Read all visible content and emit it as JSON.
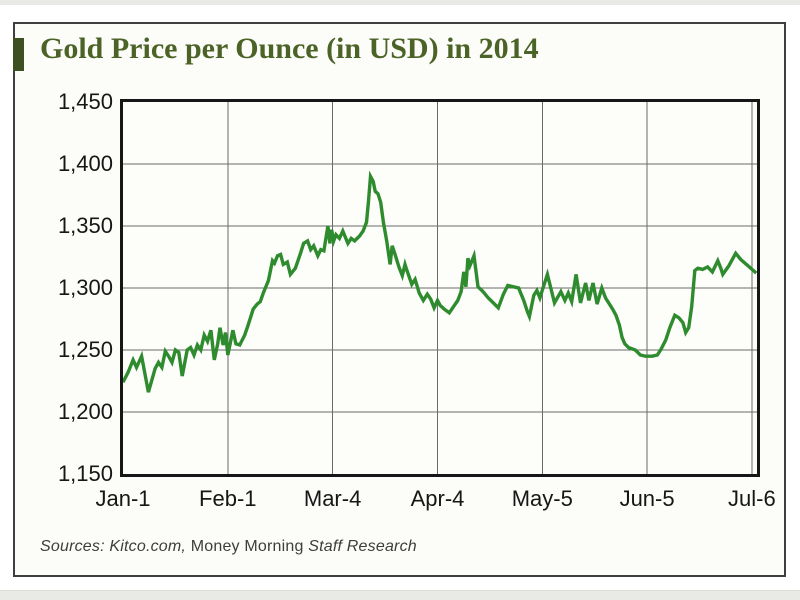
{
  "title": "Gold Price per Ounce (in USD) in 2014",
  "source_note": {
    "prefix": "Sources: Kitco.com,",
    "middle": " Money Morning ",
    "suffix": "Staff Research"
  },
  "colors": {
    "line": "#2e8b2e",
    "title_text": "#4c6327",
    "accent_bar": "#3c5022",
    "grid": "#6a6a6a",
    "plot_border": "#161616",
    "card_border": "#3f3f3f",
    "tick_text": "#161616"
  },
  "chart_data": {
    "type": "line",
    "title": "Gold Price per Ounce (in USD) in 2014",
    "xlabel": "",
    "ylabel": "",
    "grid": true,
    "legend": "none",
    "ylim": [
      1150,
      1450
    ],
    "xlim_days": [
      0,
      187.5
    ],
    "y_tick_labels": [
      "1,450",
      "1,400",
      "1,350",
      "1,300",
      "1,250",
      "1,200",
      "1,150"
    ],
    "y_tick_prices": [
      1450,
      1400,
      1350,
      1300,
      1250,
      1200,
      1150
    ],
    "grid_prices": [
      1400,
      1350,
      1300,
      1250,
      1200
    ],
    "x_tick_labels": [
      "Jan-1",
      "Feb-1",
      "Mar-4",
      "Apr-4",
      "May-5",
      "Jun-5",
      "Jul-6"
    ],
    "x_tick_days": [
      0,
      31,
      62,
      93,
      124,
      155,
      186
    ],
    "series": [
      {
        "name": "Gold price (USD per ounce)",
        "points": [
          [
            0,
            1224
          ],
          [
            1.5,
            1232
          ],
          [
            3,
            1242
          ],
          [
            4,
            1236
          ],
          [
            5.5,
            1245
          ],
          [
            7.5,
            1216
          ],
          [
            9.5,
            1235
          ],
          [
            10.5,
            1240
          ],
          [
            11.5,
            1236
          ],
          [
            12.5,
            1249
          ],
          [
            13.5,
            1245
          ],
          [
            14.5,
            1240
          ],
          [
            15.5,
            1250
          ],
          [
            16.5,
            1248
          ],
          [
            17.5,
            1229
          ],
          [
            19,
            1250
          ],
          [
            20,
            1252
          ],
          [
            21,
            1246
          ],
          [
            22,
            1254
          ],
          [
            23,
            1250
          ],
          [
            24,
            1262
          ],
          [
            25,
            1257
          ],
          [
            26,
            1266
          ],
          [
            27,
            1242
          ],
          [
            28,
            1255
          ],
          [
            28.7,
            1268
          ],
          [
            29.6,
            1254
          ],
          [
            30.3,
            1264
          ],
          [
            31,
            1246
          ],
          [
            31.9,
            1258
          ],
          [
            32.5,
            1266
          ],
          [
            33.4,
            1255
          ],
          [
            34.5,
            1254
          ],
          [
            36,
            1262
          ],
          [
            37,
            1270
          ],
          [
            38.5,
            1283
          ],
          [
            39.7,
            1287
          ],
          [
            40.6,
            1289
          ],
          [
            41.5,
            1296
          ],
          [
            43,
            1306
          ],
          [
            44.2,
            1322
          ],
          [
            44.8,
            1320
          ],
          [
            45.7,
            1326
          ],
          [
            46.6,
            1327
          ],
          [
            47.4,
            1319
          ],
          [
            48.6,
            1321
          ],
          [
            49.5,
            1311
          ],
          [
            51,
            1316
          ],
          [
            52.5,
            1328
          ],
          [
            53.4,
            1336
          ],
          [
            54.6,
            1338
          ],
          [
            55.5,
            1331
          ],
          [
            56.4,
            1334
          ],
          [
            57.6,
            1326
          ],
          [
            58.5,
            1331
          ],
          [
            59.4,
            1330
          ],
          [
            60,
            1340
          ],
          [
            60.6,
            1350
          ],
          [
            61.2,
            1336
          ],
          [
            61.7,
            1347
          ],
          [
            62.3,
            1338
          ],
          [
            63,
            1343
          ],
          [
            64,
            1340
          ],
          [
            65,
            1346
          ],
          [
            66.5,
            1336
          ],
          [
            67.5,
            1340
          ],
          [
            68.5,
            1338
          ],
          [
            70,
            1342
          ],
          [
            71,
            1346
          ],
          [
            72,
            1353
          ],
          [
            72.6,
            1370
          ],
          [
            73.2,
            1390
          ],
          [
            74,
            1386
          ],
          [
            74.6,
            1378
          ],
          [
            75.4,
            1376
          ],
          [
            76.2,
            1369
          ],
          [
            77,
            1353
          ],
          [
            78,
            1338
          ],
          [
            79,
            1319
          ],
          [
            79.6,
            1334
          ],
          [
            80.6,
            1326
          ],
          [
            81.6,
            1317
          ],
          [
            82.6,
            1310
          ],
          [
            83.4,
            1319
          ],
          [
            84,
            1314
          ],
          [
            85.4,
            1303
          ],
          [
            86.4,
            1307
          ],
          [
            87.6,
            1296
          ],
          [
            88.8,
            1290
          ],
          [
            90,
            1295
          ],
          [
            91,
            1291
          ],
          [
            92,
            1284
          ],
          [
            93,
            1290
          ],
          [
            93.8,
            1286
          ],
          [
            95,
            1283
          ],
          [
            96.5,
            1280
          ],
          [
            97.5,
            1284
          ],
          [
            99,
            1290
          ],
          [
            100,
            1297
          ],
          [
            100.8,
            1313
          ],
          [
            101.4,
            1301
          ],
          [
            102,
            1324
          ],
          [
            102.6,
            1318
          ],
          [
            103.2,
            1322
          ],
          [
            103.8,
            1326
          ],
          [
            105,
            1301
          ],
          [
            106.5,
            1297
          ],
          [
            108,
            1292
          ],
          [
            109.5,
            1288
          ],
          [
            111,
            1284
          ],
          [
            112.5,
            1295
          ],
          [
            113.8,
            1302
          ],
          [
            115.5,
            1301
          ],
          [
            117,
            1300
          ],
          [
            118.5,
            1290
          ],
          [
            119.6,
            1281
          ],
          [
            120.2,
            1277
          ],
          [
            121.5,
            1294
          ],
          [
            122.4,
            1298
          ],
          [
            123.3,
            1292
          ],
          [
            124.2,
            1300
          ],
          [
            125.5,
            1311
          ],
          [
            127.6,
            1288
          ],
          [
            129.5,
            1297
          ],
          [
            130.7,
            1290
          ],
          [
            131.7,
            1296
          ],
          [
            132.7,
            1289
          ],
          [
            134,
            1311
          ],
          [
            135.3,
            1288
          ],
          [
            136.8,
            1304
          ],
          [
            137.8,
            1290
          ],
          [
            139,
            1304
          ],
          [
            140.2,
            1287
          ],
          [
            141.6,
            1300
          ],
          [
            142.7,
            1292
          ],
          [
            144.8,
            1283
          ],
          [
            145.8,
            1278
          ],
          [
            146.8,
            1270
          ],
          [
            147.6,
            1260
          ],
          [
            148.4,
            1255
          ],
          [
            149.5,
            1252
          ],
          [
            151.5,
            1250
          ],
          [
            153,
            1246
          ],
          [
            154.5,
            1245
          ],
          [
            156.5,
            1245
          ],
          [
            158,
            1246
          ],
          [
            159,
            1250
          ],
          [
            160.5,
            1258
          ],
          [
            161.7,
            1268
          ],
          [
            163.2,
            1278
          ],
          [
            164.4,
            1276
          ],
          [
            165.6,
            1272
          ],
          [
            166.4,
            1264
          ],
          [
            167.3,
            1268
          ],
          [
            168.2,
            1285
          ],
          [
            169.1,
            1314
          ],
          [
            170,
            1316
          ],
          [
            171.4,
            1315
          ],
          [
            172.9,
            1317
          ],
          [
            174.3,
            1313
          ],
          [
            175.9,
            1322
          ],
          [
            176.8,
            1316
          ],
          [
            177.4,
            1311
          ],
          [
            179.2,
            1318
          ],
          [
            181.2,
            1328
          ],
          [
            182.7,
            1323
          ],
          [
            184.8,
            1318
          ],
          [
            187.3,
            1312
          ]
        ]
      }
    ]
  }
}
